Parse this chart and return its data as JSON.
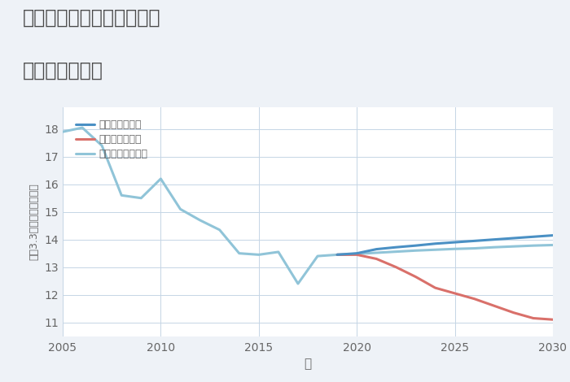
{
  "title_line1": "三重県桑名市多度町戸津の",
  "title_line2": "土地の価格推移",
  "xlabel": "年",
  "ylabel": "坪（3.3㎡）単価（万円）",
  "background_color": "#eef2f7",
  "plot_bg_color": "#ffffff",
  "ylim": [
    10.5,
    18.8
  ],
  "xlim": [
    2005,
    2030
  ],
  "yticks": [
    11,
    12,
    13,
    14,
    15,
    16,
    17,
    18
  ],
  "xticks": [
    2005,
    2010,
    2015,
    2020,
    2025,
    2030
  ],
  "good_scenario": {
    "label": "グッドシナリオ",
    "color": "#4a90c4",
    "linewidth": 2.2,
    "x": [
      2019,
      2020,
      2021,
      2022,
      2023,
      2024,
      2025,
      2026,
      2027,
      2028,
      2029,
      2030
    ],
    "y": [
      13.45,
      13.5,
      13.65,
      13.72,
      13.78,
      13.85,
      13.9,
      13.95,
      14.0,
      14.05,
      14.1,
      14.15
    ]
  },
  "bad_scenario": {
    "label": "バッドシナリオ",
    "color": "#d9706a",
    "linewidth": 2.2,
    "x": [
      2019,
      2020,
      2021,
      2022,
      2023,
      2024,
      2025,
      2026,
      2027,
      2028,
      2029,
      2030
    ],
    "y": [
      13.45,
      13.45,
      13.3,
      13.0,
      12.65,
      12.25,
      12.05,
      11.85,
      11.6,
      11.35,
      11.15,
      11.1
    ]
  },
  "normal_scenario": {
    "label": "ノーマルシナリオ",
    "color": "#90c4d8",
    "linewidth": 2.2,
    "x": [
      2019,
      2020,
      2021,
      2022,
      2023,
      2024,
      2025,
      2026,
      2027,
      2028,
      2029,
      2030
    ],
    "y": [
      13.45,
      13.48,
      13.52,
      13.56,
      13.6,
      13.63,
      13.66,
      13.68,
      13.72,
      13.75,
      13.78,
      13.8
    ]
  },
  "historical": {
    "color": "#90c4d8",
    "linewidth": 2.2,
    "x": [
      2005,
      2006,
      2007,
      2008,
      2009,
      2010,
      2011,
      2012,
      2013,
      2014,
      2015,
      2016,
      2017,
      2018,
      2019
    ],
    "y": [
      17.9,
      18.05,
      17.4,
      15.6,
      15.5,
      16.2,
      15.1,
      14.7,
      14.35,
      13.5,
      13.45,
      13.55,
      12.4,
      13.4,
      13.45
    ]
  },
  "grid_color": "#c5d5e5",
  "title_color": "#4a4a4a",
  "tick_color": "#666666",
  "legend_fontsize": 9,
  "title_fontsize": 17
}
